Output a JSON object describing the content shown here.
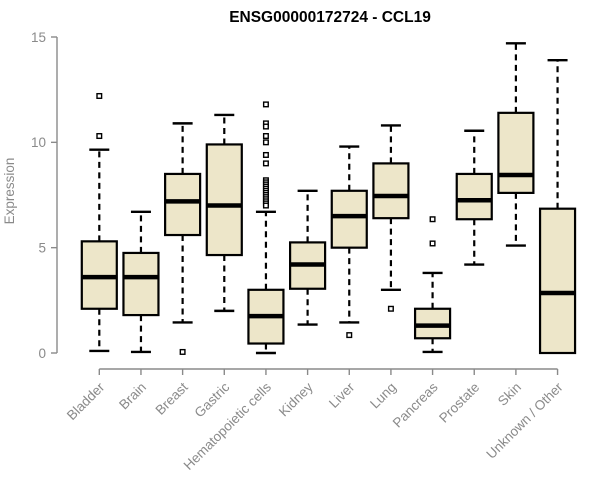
{
  "window": {
    "background": "#ffffff"
  },
  "chart_data": {
    "type": "boxplot",
    "title": "ENSG00000172724 - CCL19",
    "xlabel": "",
    "ylabel": "Expression",
    "ylim": [
      0,
      15
    ],
    "yticks": [
      0,
      5,
      10,
      15
    ],
    "grid": false,
    "legend": "none",
    "colors": {
      "box_fill": "#EDE6C9",
      "box_stroke": "#000000",
      "median": "#000000",
      "whisker": "#000000",
      "axis": "#8a8a8a",
      "tick_label": "#8a8a8a",
      "title": "#000000"
    },
    "categories": [
      "Bladder",
      "Brain",
      "Breast",
      "Gastric",
      "Hematopoietic cells",
      "Kidney",
      "Liver",
      "Lung",
      "Pancreas",
      "Prostate",
      "Skin",
      "Unknown / Other"
    ],
    "series": [
      {
        "name": "Bladder",
        "whisker_low": 0.1,
        "q1": 2.1,
        "median": 3.6,
        "q3": 5.3,
        "whisker_high": 9.65,
        "outliers": [
          12.2,
          10.3
        ]
      },
      {
        "name": "Brain",
        "whisker_low": 0.05,
        "q1": 1.8,
        "median": 3.6,
        "q3": 4.75,
        "whisker_high": 6.7,
        "outliers": []
      },
      {
        "name": "Breast",
        "whisker_low": 1.45,
        "q1": 5.6,
        "median": 7.2,
        "q3": 8.5,
        "whisker_high": 10.9,
        "outliers": [
          0.05
        ]
      },
      {
        "name": "Gastric",
        "whisker_low": 2.0,
        "q1": 4.65,
        "median": 7.0,
        "q3": 9.9,
        "whisker_high": 11.3,
        "outliers": []
      },
      {
        "name": "Hematopoietic cells",
        "whisker_low": 0.0,
        "q1": 0.45,
        "median": 1.75,
        "q3": 3.0,
        "whisker_high": 6.7,
        "outliers": [
          11.8,
          10.9,
          10.75,
          10.3,
          10.0,
          9.4,
          9.0,
          8.2,
          8.1,
          8.0,
          7.9,
          7.8,
          7.7,
          7.6,
          7.5,
          7.4,
          7.3,
          7.2,
          7.1,
          7.0
        ]
      },
      {
        "name": "Kidney",
        "whisker_low": 1.35,
        "q1": 3.05,
        "median": 4.2,
        "q3": 5.25,
        "whisker_high": 7.7,
        "outliers": []
      },
      {
        "name": "Liver",
        "whisker_low": 1.45,
        "q1": 5.0,
        "median": 6.5,
        "q3": 7.7,
        "whisker_high": 9.8,
        "outliers": [
          0.85
        ]
      },
      {
        "name": "Lung",
        "whisker_low": 3.0,
        "q1": 6.4,
        "median": 7.45,
        "q3": 9.0,
        "whisker_high": 10.8,
        "outliers": [
          2.1
        ]
      },
      {
        "name": "Pancreas",
        "whisker_low": 0.05,
        "q1": 0.7,
        "median": 1.3,
        "q3": 2.1,
        "whisker_high": 3.8,
        "outliers": [
          6.35,
          5.2
        ]
      },
      {
        "name": "Prostate",
        "whisker_low": 4.2,
        "q1": 6.35,
        "median": 7.25,
        "q3": 8.5,
        "whisker_high": 10.55,
        "outliers": []
      },
      {
        "name": "Skin",
        "whisker_low": 5.1,
        "q1": 7.6,
        "median": 8.45,
        "q3": 11.4,
        "whisker_high": 14.7,
        "outliers": []
      },
      {
        "name": "Unknown / Other",
        "whisker_low": 0.0,
        "q1": 0.0,
        "median": 2.85,
        "q3": 6.85,
        "whisker_high": 13.9,
        "outliers": []
      }
    ]
  }
}
